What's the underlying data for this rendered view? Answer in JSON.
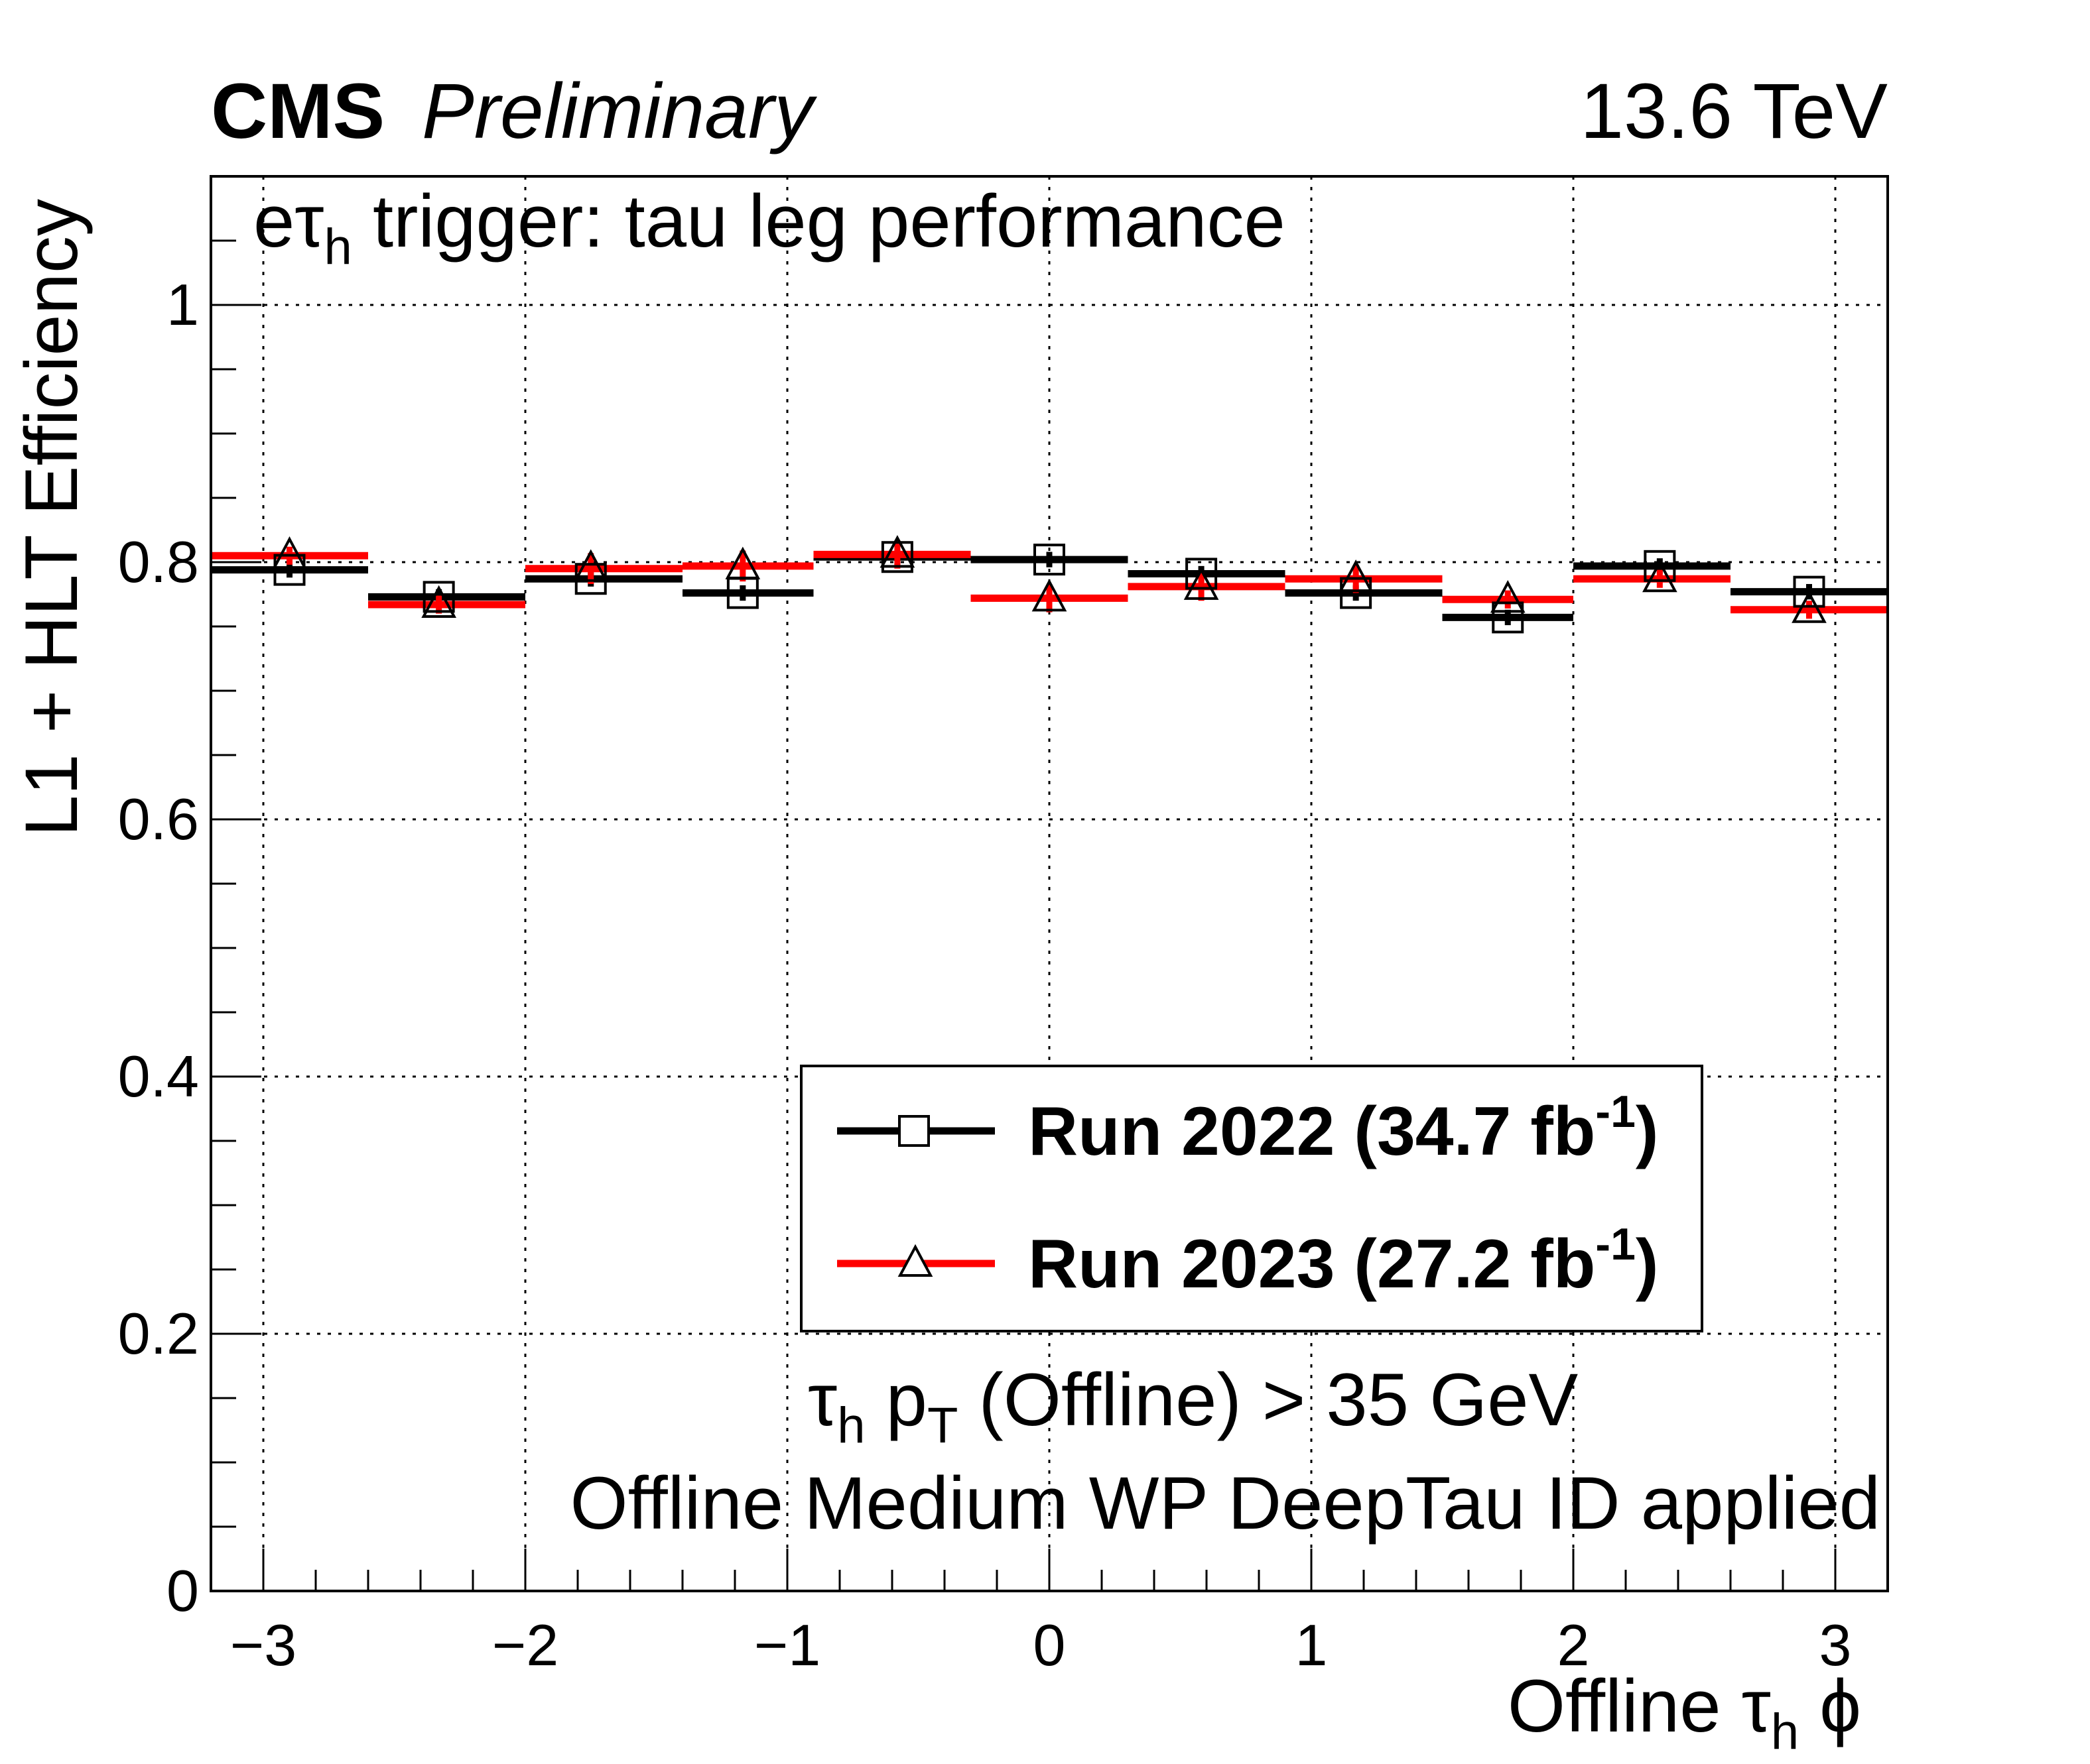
{
  "header": {
    "experiment": "CMS",
    "status": "Preliminary",
    "energy": "13.6 TeV"
  },
  "annotations": {
    "trigger_prefix": "e",
    "trigger_tau": "τ",
    "trigger_sub": "h",
    "trigger_rest": " trigger: tau leg performance",
    "cut_tau": "τ",
    "cut_tau_sub": "h",
    "cut_p": " p",
    "cut_p_sub": "T",
    "cut_rest": " (Offline) > 35 GeV",
    "id_text": "Offline Medium WP DeepTau ID applied"
  },
  "chart_data": {
    "type": "scatter",
    "title": "",
    "xlabel_main": "Offline ",
    "xlabel_tau": "τ",
    "xlabel_sub": "h",
    "xlabel_phi": " ϕ",
    "ylabel": "L1 + HLT Efficiency",
    "xlim": [
      -3.2,
      3.2
    ],
    "ylim": [
      0,
      1.1
    ],
    "xticks": [
      -3,
      -2,
      -1,
      0,
      1,
      2,
      3
    ],
    "xtick_labels": [
      "−3",
      "−2",
      "−1",
      "0",
      "1",
      "2",
      "3"
    ],
    "yticks": [
      0,
      0.2,
      0.4,
      0.6,
      0.8,
      1
    ],
    "ytick_labels": [
      "0",
      "0.2",
      "0.4",
      "0.6",
      "0.8",
      "1"
    ],
    "grid": true,
    "legend_position": "center-right",
    "bin_edges": [
      -3.2,
      -2.6,
      -2.0,
      -1.4,
      -0.9,
      -0.3,
      0.3,
      0.9,
      1.5,
      2.0,
      2.6,
      3.2
    ],
    "series": [
      {
        "name": "Run 2022 (34.7 fb",
        "name_sup": "-1",
        "name_close": ")",
        "color": "#000000",
        "marker": "open-square",
        "x": [
          -2.9,
          -2.33,
          -1.75,
          -1.17,
          -0.58,
          0.0,
          0.58,
          1.17,
          1.75,
          2.33,
          2.9
        ],
        "values": [
          0.794,
          0.773,
          0.787,
          0.776,
          0.804,
          0.802,
          0.791,
          0.776,
          0.757,
          0.797,
          0.777
        ],
        "errors": [
          0.006,
          0.006,
          0.006,
          0.006,
          0.006,
          0.006,
          0.006,
          0.006,
          0.006,
          0.006,
          0.006
        ]
      },
      {
        "name": "Run 2023 (27.2 fb",
        "name_sup": "-1",
        "name_close": ")",
        "color": "#ff0000",
        "marker": "open-triangle",
        "x": [
          -2.9,
          -2.33,
          -1.75,
          -1.17,
          -0.58,
          0.0,
          0.58,
          1.17,
          1.75,
          2.33,
          2.9
        ],
        "values": [
          0.805,
          0.767,
          0.795,
          0.797,
          0.806,
          0.772,
          0.781,
          0.787,
          0.771,
          0.787,
          0.763
        ],
        "errors": [
          0.007,
          0.007,
          0.012,
          0.012,
          0.011,
          0.011,
          0.011,
          0.011,
          0.007,
          0.007,
          0.007
        ]
      }
    ]
  }
}
